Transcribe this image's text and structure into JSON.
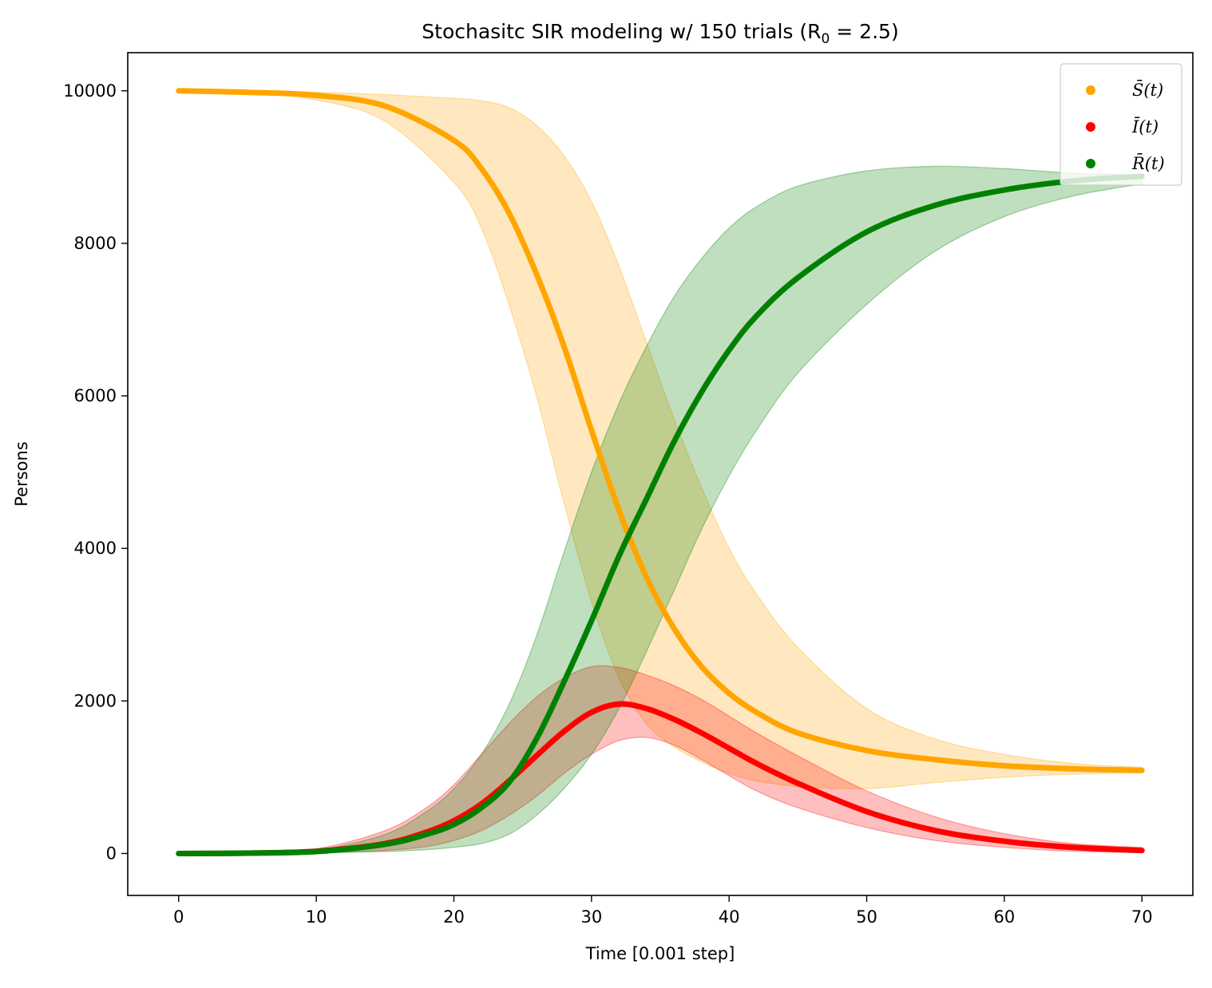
{
  "chart_data": {
    "type": "scatter",
    "title": "Stochasitc SIR modeling w/ 150 trials (R",
    "title_sub": "0",
    "title_tail": " = 2.5)",
    "xlabel": "Time [0.001 step]",
    "ylabel": "Persons",
    "xlim": [
      -3.7,
      73.7
    ],
    "ylim": [
      -550,
      10500
    ],
    "xticks": [
      0,
      10,
      20,
      30,
      40,
      50,
      60,
      70
    ],
    "xtick_labels": [
      "0",
      "10",
      "20",
      "30",
      "40",
      "50",
      "60",
      "70"
    ],
    "yticks": [
      0,
      2000,
      4000,
      6000,
      8000,
      10000
    ],
    "ytick_labels": [
      "0",
      "2000",
      "4000",
      "6000",
      "8000",
      "10000"
    ],
    "legend_position": "top-right",
    "series": [
      {
        "name": "S̄(t)",
        "color": "#ffa500",
        "x": [
          0,
          5,
          10,
          15,
          20,
          22,
          24,
          26,
          28,
          30,
          32,
          34,
          36,
          38,
          40,
          42,
          45,
          50,
          55,
          60,
          65,
          70
        ],
        "mean": [
          10000,
          9980,
          9940,
          9800,
          9350,
          8980,
          8400,
          7600,
          6650,
          5550,
          4500,
          3620,
          2950,
          2450,
          2100,
          1850,
          1580,
          1350,
          1230,
          1150,
          1110,
          1090
        ],
        "upper": [
          10000,
          9995,
          9980,
          9950,
          9900,
          9870,
          9780,
          9550,
          9150,
          8550,
          7700,
          6700,
          5700,
          4800,
          4000,
          3400,
          2700,
          1900,
          1500,
          1300,
          1180,
          1130
        ],
        "lower": [
          10000,
          9970,
          9880,
          9600,
          8800,
          8200,
          7200,
          6000,
          4600,
          3300,
          2300,
          1700,
          1400,
          1200,
          1050,
          950,
          880,
          850,
          930,
          1000,
          1040,
          1060
        ]
      },
      {
        "name": "Ī(t)",
        "color": "#ff0000",
        "x": [
          0,
          5,
          10,
          15,
          18,
          20,
          22,
          24,
          26,
          28,
          30,
          32,
          34,
          36,
          38,
          40,
          42,
          45,
          50,
          55,
          60,
          65,
          70
        ],
        "mean": [
          0,
          5,
          30,
          130,
          280,
          430,
          650,
          950,
          1280,
          1600,
          1850,
          1960,
          1900,
          1760,
          1580,
          1380,
          1180,
          920,
          550,
          300,
          160,
          80,
          40
        ],
        "upper": [
          0,
          10,
          60,
          300,
          600,
          900,
          1300,
          1700,
          2050,
          2300,
          2450,
          2440,
          2340,
          2200,
          2020,
          1800,
          1580,
          1280,
          820,
          480,
          260,
          130,
          80
        ],
        "lower": [
          0,
          2,
          10,
          40,
          90,
          170,
          300,
          500,
          750,
          1050,
          1300,
          1480,
          1520,
          1420,
          1230,
          1020,
          820,
          600,
          340,
          170,
          80,
          30,
          10
        ]
      },
      {
        "name": "R̄(t)",
        "color": "#008000",
        "x": [
          0,
          5,
          10,
          15,
          18,
          20,
          22,
          24,
          26,
          28,
          30,
          32,
          34,
          36,
          38,
          40,
          42,
          45,
          50,
          55,
          60,
          65,
          70
        ],
        "mean": [
          0,
          5,
          25,
          120,
          250,
          380,
          600,
          930,
          1500,
          2250,
          3050,
          3900,
          4650,
          5400,
          6050,
          6600,
          7050,
          7550,
          8150,
          8500,
          8700,
          8820,
          8880
        ],
        "upper": [
          0,
          10,
          45,
          250,
          550,
          850,
          1300,
          1950,
          2850,
          3950,
          5000,
          5900,
          6650,
          7300,
          7800,
          8200,
          8480,
          8750,
          8950,
          9010,
          8980,
          8920,
          8900
        ],
        "lower": [
          0,
          2,
          8,
          25,
          50,
          80,
          130,
          250,
          500,
          850,
          1300,
          1900,
          2650,
          3450,
          4250,
          4950,
          5550,
          6300,
          7200,
          7900,
          8350,
          8620,
          8780
        ]
      }
    ]
  }
}
